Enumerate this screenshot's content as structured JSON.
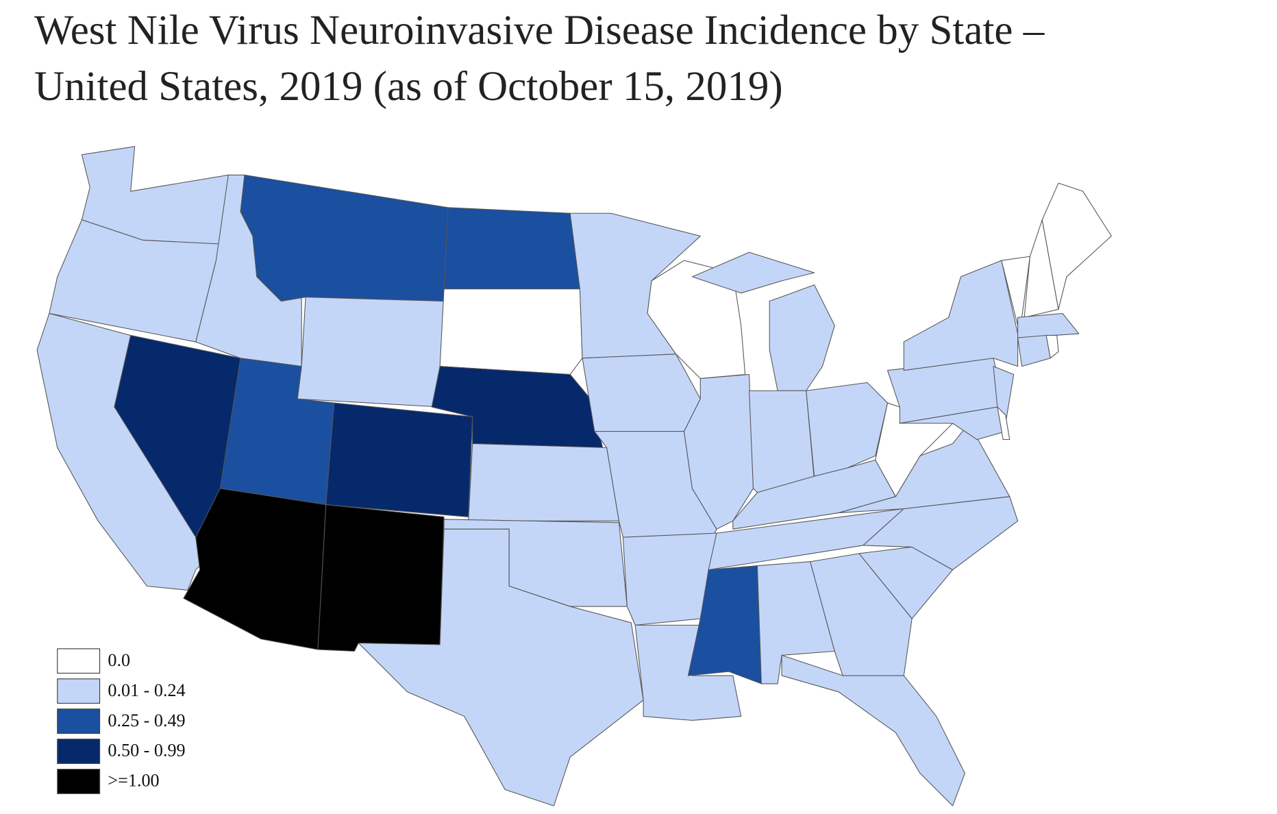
{
  "header": {
    "title": "West Nile Virus Neuroinvasive Disease Incidence by State –\nUnited States, 2019 (as of October 15, 2019)"
  },
  "legend": [
    {
      "label": "0.0",
      "color": "#ffffff"
    },
    {
      "label": "0.01 - 0.24",
      "color": "#c4d6f8"
    },
    {
      "label": "0.25 - 0.49",
      "color": "#1b4fa0"
    },
    {
      "label": "0.50 - 0.99",
      "color": "#06296c"
    },
    {
      "label": ">=1.00",
      "color": "#000000"
    }
  ]
}
